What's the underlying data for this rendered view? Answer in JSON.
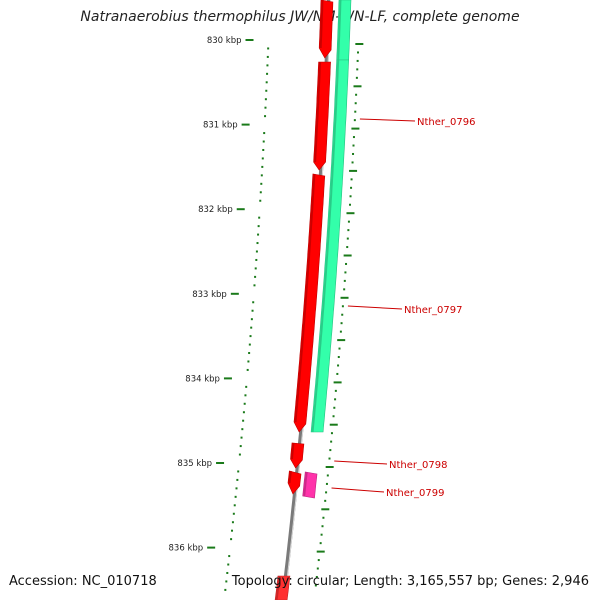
{
  "title": "Natranaerobius thermophilus JW/NM-WN-LF, complete genome",
  "ruler": {
    "labels": [
      "830 kbp",
      "831 kbp",
      "832 kbp",
      "833 kbp",
      "834 kbp",
      "835 kbp",
      "836 kbp"
    ],
    "tick_color": "#1a7a1a"
  },
  "backbone": {
    "color": "#7a7a7a"
  },
  "genes": [
    {
      "id": "Nther_0796",
      "strand": "forward",
      "color": "#33ffaa"
    },
    {
      "id": "Nther_0797",
      "strand": "reverse",
      "color": "#ff0000"
    },
    {
      "id": "Nther_0798",
      "strand": "reverse",
      "color": "#ff0000"
    },
    {
      "id": "Nther_0799",
      "strand": "forward",
      "color": "#ff33aa"
    }
  ],
  "label_color": "#cc0000",
  "footer": {
    "accession": "Accession: NC_010718",
    "topology": "Topology: circular; Length: 3,165,557 bp; Genes: 2,946"
  }
}
